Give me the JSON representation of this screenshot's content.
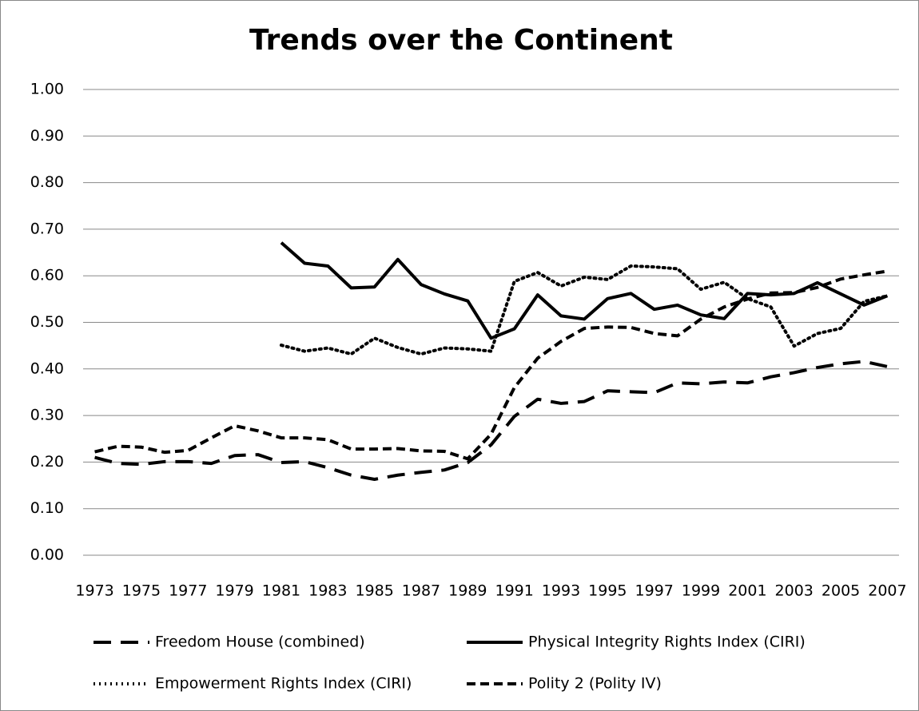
{
  "chart_data": {
    "type": "line",
    "title": "Trends over the Continent",
    "categories": [
      "1973",
      null,
      "1975",
      null,
      "1977",
      null,
      "1979",
      null,
      "1981",
      null,
      "1983",
      null,
      "1985",
      null,
      "1987",
      null,
      "1989",
      null,
      "1991",
      null,
      "1993",
      null,
      "1995",
      null,
      "1997",
      null,
      "1999",
      null,
      "2001",
      null,
      "2003",
      null,
      "2005",
      null,
      "2007"
    ],
    "ylim": [
      0,
      1
    ],
    "yticks": [
      {
        "value": 0,
        "label": "0.00"
      },
      {
        "value": 0.1,
        "label": "0.10"
      },
      {
        "value": 0.2,
        "label": "0.20"
      },
      {
        "value": 0.3,
        "label": "0.30"
      },
      {
        "value": 0.4,
        "label": "0.40"
      },
      {
        "value": 0.5,
        "label": "0.50"
      },
      {
        "value": 0.6,
        "label": "0.60"
      },
      {
        "value": 0.7,
        "label": "0.70"
      },
      {
        "value": 0.8,
        "label": "0.80"
      },
      {
        "value": 0.9,
        "label": "0.90"
      },
      {
        "value": 1,
        "label": "1.00"
      }
    ],
    "grid": true,
    "legend": "bottom",
    "series": [
      {
        "name": "Freedom House (combined)",
        "color": "#000000",
        "line_style": "long-dash",
        "values": [
          0.21,
          0.197,
          0.195,
          0.201,
          0.201,
          0.197,
          0.214,
          0.216,
          0.199,
          0.201,
          0.188,
          0.172,
          0.163,
          0.172,
          0.178,
          0.183,
          0.199,
          0.237,
          0.298,
          0.335,
          0.326,
          0.33,
          0.353,
          0.351,
          0.349,
          0.37,
          0.368,
          0.372,
          0.37,
          0.383,
          0.392,
          0.403,
          0.411,
          0.416,
          0.405
        ]
      },
      {
        "name": "Physical Integrity Rights Index (CIRI)",
        "color": "#000000",
        "line_style": "solid",
        "values": [
          null,
          null,
          null,
          null,
          null,
          null,
          null,
          null,
          0.671,
          0.627,
          0.621,
          0.574,
          0.576,
          0.635,
          0.581,
          0.561,
          0.546,
          0.466,
          0.486,
          0.559,
          0.514,
          0.507,
          0.551,
          0.562,
          0.528,
          0.537,
          0.516,
          0.508,
          0.562,
          0.559,
          0.562,
          0.585,
          0.561,
          0.537,
          0.557
        ]
      },
      {
        "name": "Empowerment Rights Index (CIRI)",
        "color": "#000000",
        "line_style": "dotted",
        "values": [
          null,
          null,
          null,
          null,
          null,
          null,
          null,
          null,
          0.451,
          0.438,
          0.445,
          0.432,
          0.466,
          0.446,
          0.432,
          0.445,
          0.443,
          0.438,
          0.588,
          0.607,
          0.578,
          0.597,
          0.592,
          0.621,
          0.619,
          0.615,
          0.571,
          0.586,
          0.551,
          0.533,
          0.449,
          0.476,
          0.487,
          0.545,
          0.557
        ]
      },
      {
        "name": "Polity 2 (Polity IV)",
        "color": "#000000",
        "line_style": "short-dash",
        "values": [
          0.222,
          0.234,
          0.232,
          0.221,
          0.225,
          0.252,
          0.278,
          0.267,
          0.252,
          0.252,
          0.248,
          0.228,
          0.228,
          0.229,
          0.224,
          0.223,
          0.207,
          0.26,
          0.36,
          0.423,
          0.459,
          0.487,
          0.49,
          0.489,
          0.476,
          0.471,
          0.507,
          0.533,
          0.55,
          0.563,
          0.564,
          0.575,
          0.593,
          0.602,
          0.61
        ]
      }
    ]
  }
}
